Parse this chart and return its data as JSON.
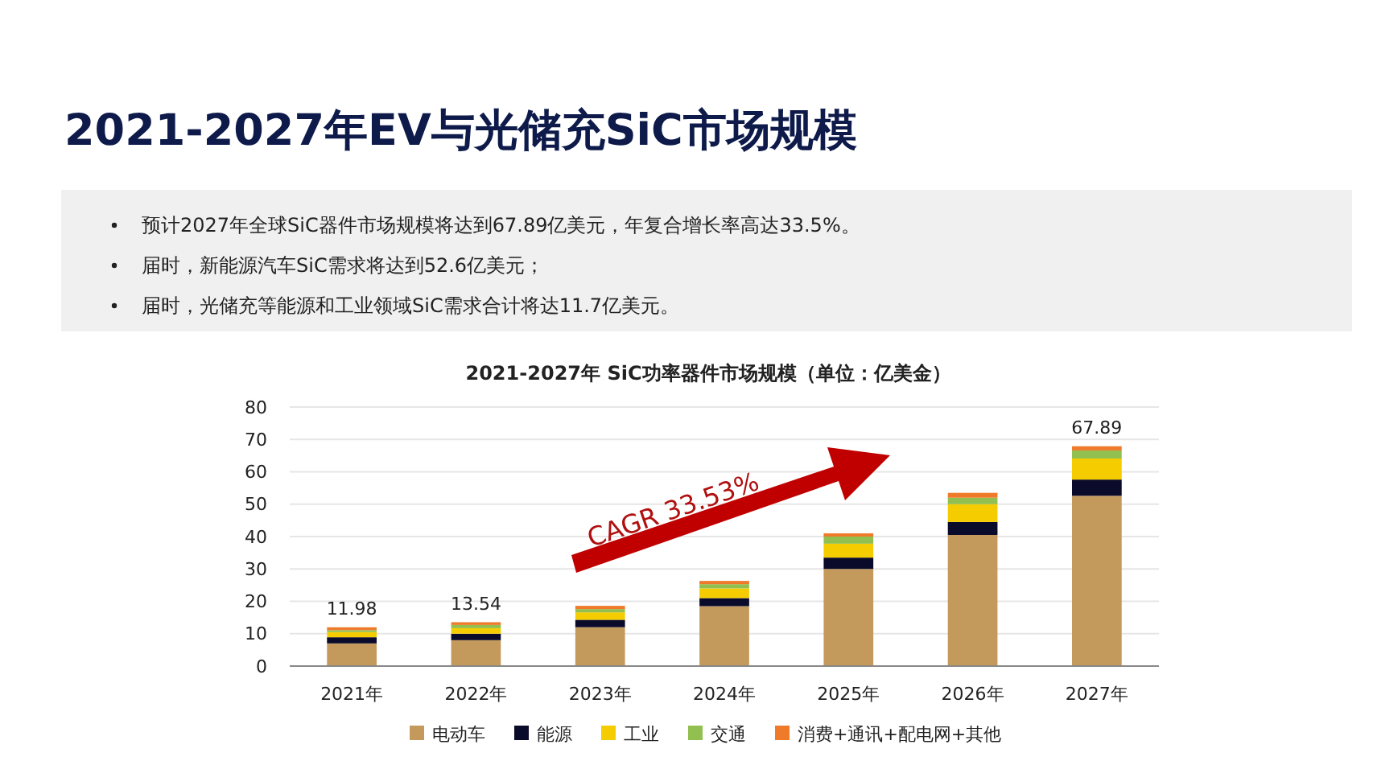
{
  "chart_data": {
    "type": "bar",
    "stacked": true,
    "title": "2021-2027年EV与光储充SiC市场规模",
    "subtitle": "2021-2027年  SiC功率器件市场规模（单位：亿美金）",
    "annotations": [
      "预计2027年全球SiC器件市场规模将达到67.89亿美元，年复合增长率高达33.5%。",
      "届时，新能源汽车SiC需求将达到52.6亿美元；",
      "届时，光储充等能源和工业领域SiC需求合计将达11.7亿美元。",
      "CAGR 33.53%"
    ],
    "categories": [
      "2021年",
      "2022年",
      "2023年",
      "2024年",
      "2025年",
      "2026年",
      "2027年"
    ],
    "series": [
      {
        "name": "电动车",
        "color": "#c49a5c",
        "values": [
          7.0,
          8.0,
          12.0,
          18.5,
          30.0,
          40.5,
          52.6
        ]
      },
      {
        "name": "能源",
        "color": "#0a0a2a",
        "values": [
          1.9,
          2.0,
          2.3,
          2.5,
          3.5,
          4.0,
          5.0
        ]
      },
      {
        "name": "工业",
        "color": "#f5cc00",
        "values": [
          1.6,
          1.7,
          2.3,
          3.0,
          4.3,
          5.5,
          6.5
        ]
      },
      {
        "name": "交通",
        "color": "#92c050",
        "values": [
          0.6,
          1.0,
          1.0,
          1.3,
          2.2,
          2.0,
          2.5
        ]
      },
      {
        "name": "消费+通讯+配电网+其他",
        "color": "#ee7a2a",
        "values": [
          0.88,
          0.84,
          1.0,
          1.0,
          1.0,
          1.5,
          1.29
        ]
      }
    ],
    "totals": [
      "11.98",
      "13.54",
      null,
      null,
      null,
      null,
      "67.89"
    ],
    "ylim": [
      0,
      80
    ],
    "yticks": [
      0,
      10,
      20,
      30,
      40,
      50,
      60,
      70,
      80
    ],
    "grid": "y",
    "legend": "bottom"
  }
}
